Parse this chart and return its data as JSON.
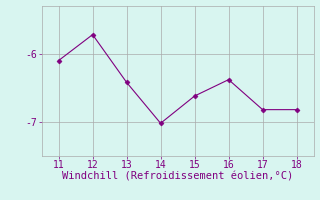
{
  "x": [
    11,
    12,
    13,
    14,
    15,
    16,
    17,
    18
  ],
  "y": [
    -6.1,
    -5.72,
    -6.42,
    -7.02,
    -6.62,
    -6.38,
    -6.82,
    -6.82
  ],
  "line_color": "#800080",
  "marker": "D",
  "marker_size": 2.5,
  "bg_color": "#d8f5f0",
  "grid_color": "#aaaaaa",
  "xlabel": "Windchill (Refroidissement éolien,°C)",
  "xlabel_color": "#800080",
  "xlabel_fontsize": 7.5,
  "tick_color": "#800080",
  "tick_fontsize": 7,
  "yticks": [
    -7,
    -6
  ],
  "ytick_labels": [
    "-7",
    "-6"
  ],
  "xlim": [
    10.5,
    18.5
  ],
  "ylim": [
    -7.5,
    -5.3
  ],
  "xticks": [
    11,
    12,
    13,
    14,
    15,
    16,
    17,
    18
  ]
}
